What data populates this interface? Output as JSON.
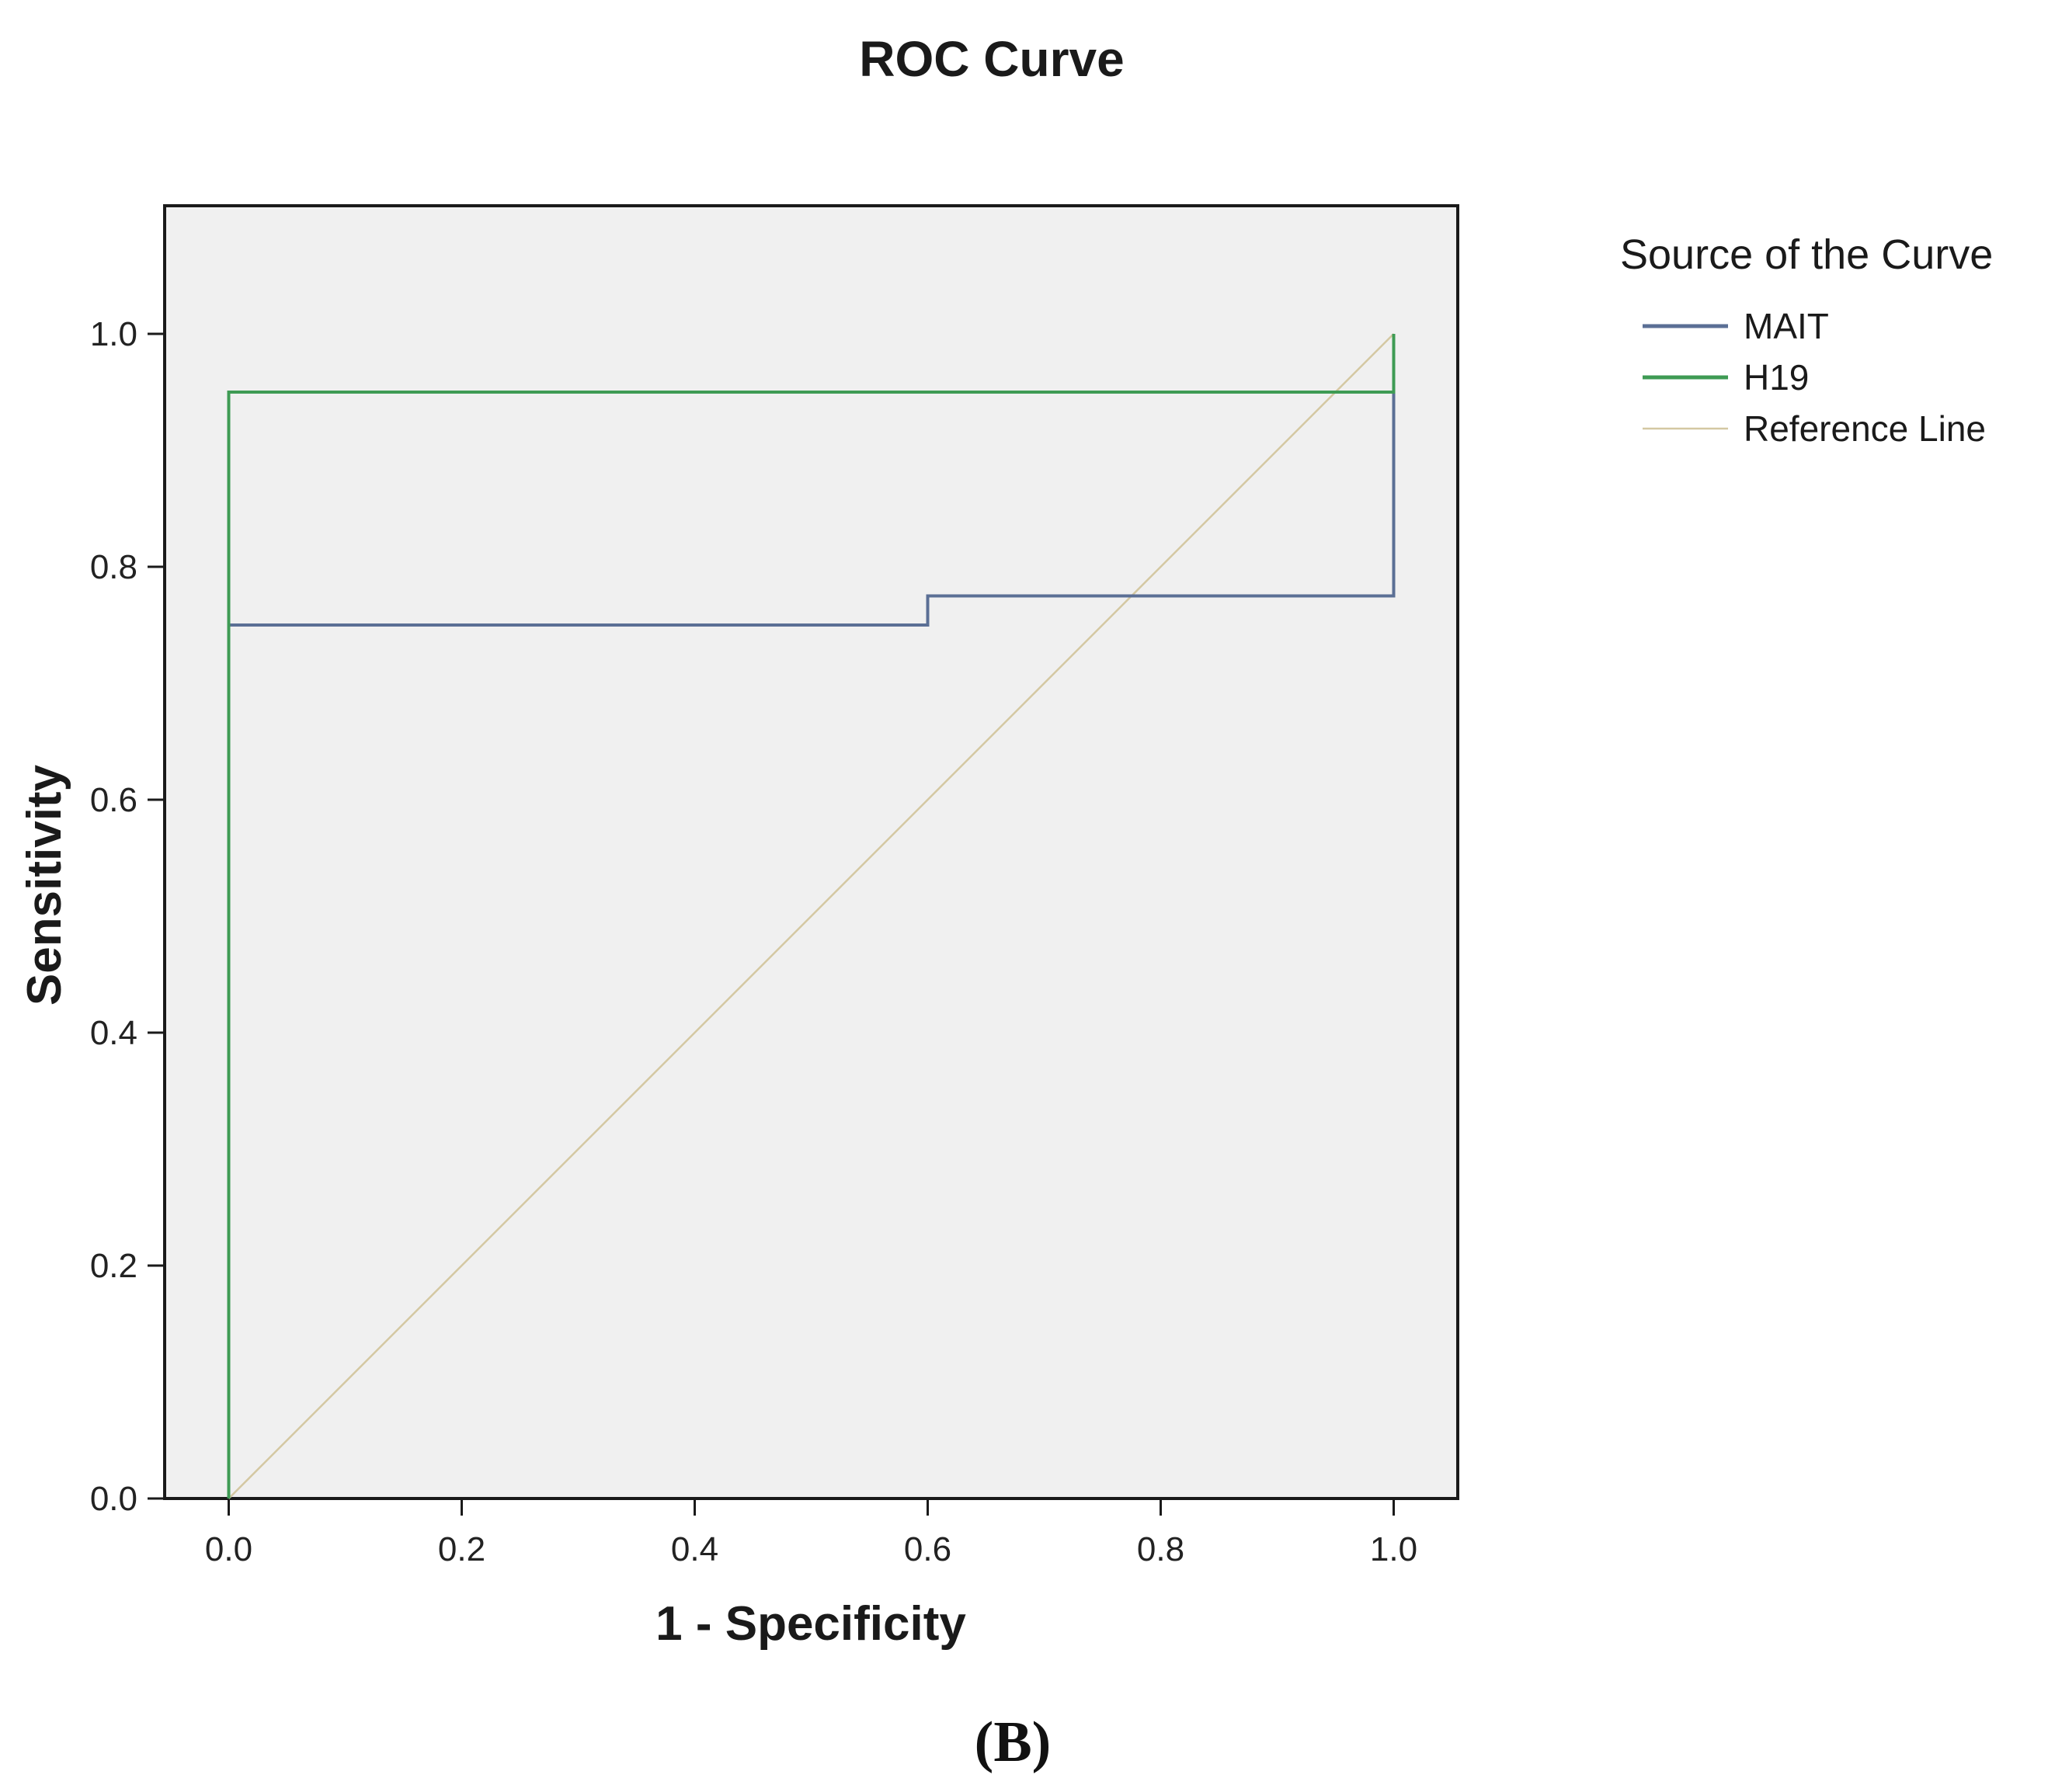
{
  "figure": {
    "panel_label": "(B)"
  },
  "chart_data": {
    "type": "line",
    "title": "ROC Curve",
    "xlabel": "1 - Specificity",
    "ylabel": "Sensitivity",
    "xlim": [
      -0.055,
      1.055
    ],
    "ylim": [
      0.0,
      1.11
    ],
    "xticks": [
      0.0,
      0.2,
      0.4,
      0.6,
      0.8,
      1.0
    ],
    "yticks": [
      0.0,
      0.2,
      0.4,
      0.6,
      0.8,
      1.0
    ],
    "xtick_labels": [
      "0.0",
      "0.2",
      "0.4",
      "0.6",
      "0.8",
      "1.0"
    ],
    "ytick_labels": [
      "0.0",
      "0.2",
      "0.4",
      "0.6",
      "0.8",
      "1.0"
    ],
    "grid": false,
    "legend": {
      "title": "Source of the Curve",
      "position": "right-outside-top"
    },
    "series": [
      {
        "name": "MAIT",
        "color": "#5b6f95",
        "x": [
          0.0,
          0.0,
          0.6,
          0.6,
          1.0,
          1.0
        ],
        "y": [
          0.0,
          0.75,
          0.75,
          0.775,
          0.775,
          1.0
        ]
      },
      {
        "name": "H19",
        "color": "#3e9b54",
        "x": [
          0.0,
          0.0,
          1.0,
          1.0
        ],
        "y": [
          0.0,
          0.95,
          0.95,
          1.0
        ]
      },
      {
        "name": "Reference Line",
        "color": "#d4c8a2",
        "x": [
          0.0,
          1.0
        ],
        "y": [
          0.0,
          1.0
        ]
      }
    ],
    "plot_background": "#f0f0f0",
    "frame_color": "#1a1a1a"
  }
}
